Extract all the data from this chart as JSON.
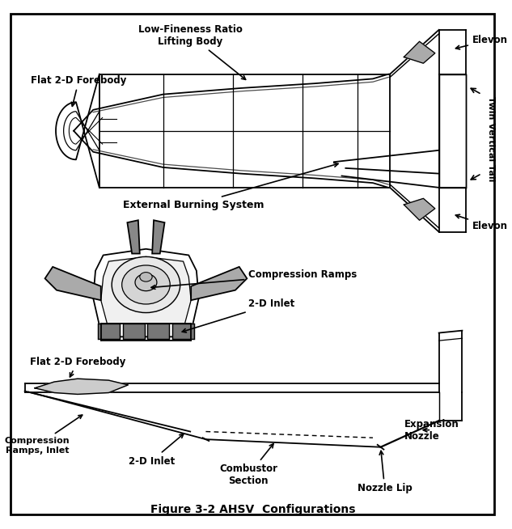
{
  "title": "Figure 3-2 AHSV  Configurations",
  "bg_color": "#ffffff",
  "line_color": "#000000",
  "labels": {
    "top_view": {
      "low_fineness": "Low-Fineness Ratio\nLifting Body",
      "flat_forebody_top": "Flat 2-D Forebody",
      "external_burning": "External Burning System",
      "elevon_top": "Elevon",
      "elevon_bot": "Elevon",
      "twin_tail": "Twin Vertical Tail"
    },
    "front_view": {
      "compression_ramps": "Compression Ramps",
      "inlet_2d": "2-D Inlet"
    },
    "side_view": {
      "flat_forebody_side": "Flat 2-D Forebody",
      "compression_ramps_inlet": "Compression\nRamps, Inlet",
      "inlet_2d": "2-D Inlet",
      "combustor": "Combustor\nSection",
      "nozzle_lip": "Nozzle Lip",
      "expansion_nozzle": "Expansion\nNozzle"
    }
  }
}
